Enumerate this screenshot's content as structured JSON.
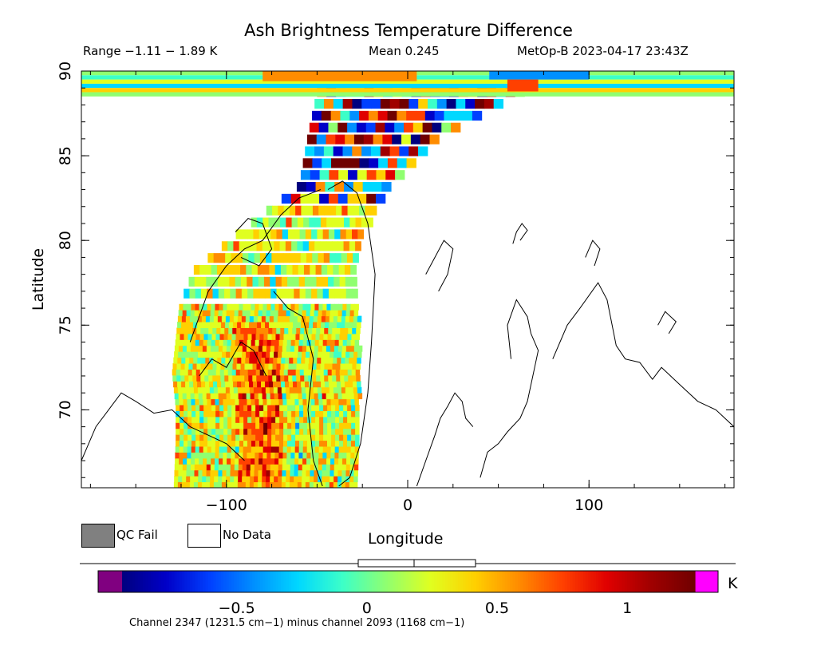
{
  "header": {
    "title": "Ash Brightness Temperature Difference",
    "range_text": "Range −1.11 − 1.89 K",
    "mean_text": "Mean 0.245",
    "satellite_text": "MetOp-B 2023-04-17 23:43Z"
  },
  "legend": {
    "qc_fail_label": "QC Fail",
    "qc_fail_color": "#808080",
    "no_data_label": "No Data",
    "no_data_color": "#ffffff"
  },
  "colorbar": {
    "unit": "K",
    "min": -0.94,
    "max": 1.26,
    "tick_values": [
      -0.5,
      0,
      0.5,
      1
    ],
    "tick_labels": [
      "−0.5",
      "0",
      "0.5",
      "1"
    ],
    "under_color": "#800080",
    "over_color": "#ff00ff",
    "colors": [
      "#00007f",
      "#0000c8",
      "#0040ff",
      "#0090ff",
      "#00d8ff",
      "#3cffc8",
      "#90ff70",
      "#e0ff20",
      "#ffd000",
      "#ff8c00",
      "#ff4000",
      "#e00000",
      "#a00000",
      "#700000"
    ],
    "footnote": "Channel 2347 (1231.5 cm−1) minus channel 2093 (1168 cm−1)"
  },
  "chart_data": {
    "type": "heatmap",
    "title": "Ash Brightness Temperature Difference",
    "xlabel": "Longitude",
    "ylabel": "Latitude",
    "xlim": [
      -180,
      180
    ],
    "ylim": [
      65.4,
      90
    ],
    "x_ticks": [
      -100,
      0,
      100
    ],
    "x_tick_labels": [
      "−100",
      "0",
      "100"
    ],
    "y_ticks": [
      70,
      75,
      80,
      85,
      90
    ],
    "y_tick_labels": [
      "70",
      "75",
      "80",
      "85",
      "90"
    ],
    "value_unit": "K",
    "value_range": [
      -1.11,
      1.89
    ],
    "mean": 0.245,
    "grid": false,
    "swath": {
      "lon_west_edge": [
        -129,
        -128,
        -128,
        -130,
        -128,
        -126,
        -118,
        -96,
        -60,
        -55,
        -50
      ],
      "lon_east_edge": [
        -28,
        -28,
        -27,
        -28,
        -27,
        -28,
        -30,
        -26,
        -12,
        20,
        60
      ],
      "lat": [
        65.4,
        68,
        70,
        72,
        74,
        76,
        78,
        80,
        83,
        86,
        88.5
      ]
    },
    "colorbar_range": [
      -0.94,
      1.26
    ]
  }
}
